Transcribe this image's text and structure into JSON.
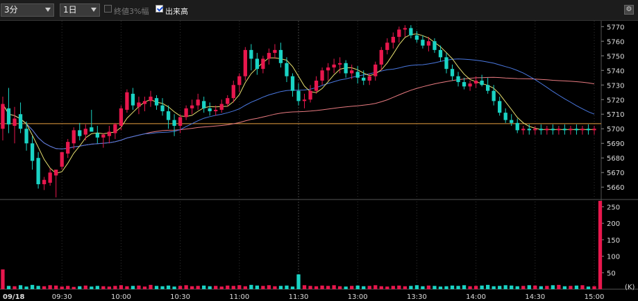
{
  "toolbar": {
    "interval": "3分",
    "range": "1日",
    "close_3pct_label": "終値3%幅",
    "close_3pct_checked": false,
    "volume_label": "出来高",
    "volume_checked": true
  },
  "colors": {
    "up": "#e8174d",
    "down": "#1ad3c4",
    "ma_short": "#e8e070",
    "ma_mid": "#4a78e0",
    "ma_long": "#e87a80",
    "prev_close_line": "#e8a040"
  },
  "chart_data": [
    {
      "type": "candlestick",
      "title": "",
      "y_ticks": [
        5660,
        5670,
        5680,
        5690,
        5700,
        5710,
        5720,
        5730,
        5740,
        5750,
        5760,
        5770
      ],
      "ylim": [
        5652,
        5773
      ],
      "x_tick_labels": [
        "09/18",
        "09:30",
        "10:00",
        "10:30",
        "11:00",
        "11:30",
        "13:00",
        "13:30",
        "14:00",
        "14:30",
        "15:00"
      ],
      "x_tick_bar_index": [
        0,
        10,
        20,
        30,
        40,
        50,
        60,
        70,
        80,
        90,
        100
      ],
      "reference_line": 5703.5,
      "ohlc": [
        [
          5700,
          5722,
          5692,
          5717
        ],
        [
          5714,
          5728,
          5697,
          5703
        ],
        [
          5702,
          5715,
          5690,
          5707
        ],
        [
          5710,
          5718,
          5697,
          5700
        ],
        [
          5700,
          5705,
          5685,
          5690
        ],
        [
          5690,
          5695,
          5672,
          5678
        ],
        [
          5680,
          5684,
          5659,
          5662
        ],
        [
          5662,
          5667,
          5658,
          5665
        ],
        [
          5663,
          5673,
          5661,
          5670
        ],
        [
          5668,
          5672,
          5653,
          5672
        ],
        [
          5674,
          5684,
          5672,
          5684
        ],
        [
          5683,
          5693,
          5680,
          5691
        ],
        [
          5690,
          5701,
          5686,
          5699
        ],
        [
          5699,
          5704,
          5692,
          5695
        ],
        [
          5696,
          5703,
          5692,
          5700
        ],
        [
          5701,
          5713,
          5698,
          5698
        ],
        [
          5697,
          5702,
          5690,
          5694
        ],
        [
          5694,
          5697,
          5687,
          5696
        ],
        [
          5695,
          5702,
          5690,
          5698
        ],
        [
          5697,
          5704,
          5693,
          5703
        ],
        [
          5702,
          5716,
          5699,
          5714
        ],
        [
          5713,
          5727,
          5711,
          5725
        ],
        [
          5724,
          5728,
          5713,
          5716
        ],
        [
          5715,
          5722,
          5710,
          5718
        ],
        [
          5717,
          5722,
          5712,
          5719
        ],
        [
          5719,
          5726,
          5715,
          5722
        ],
        [
          5721,
          5723,
          5713,
          5716
        ],
        [
          5716,
          5721,
          5709,
          5712
        ],
        [
          5712,
          5716,
          5700,
          5706
        ],
        [
          5706,
          5710,
          5695,
          5702
        ],
        [
          5702,
          5710,
          5697,
          5708
        ],
        [
          5708,
          5716,
          5706,
          5714
        ],
        [
          5714,
          5720,
          5710,
          5716
        ],
        [
          5716,
          5724,
          5713,
          5720
        ],
        [
          5719,
          5722,
          5711,
          5714
        ],
        [
          5714,
          5718,
          5709,
          5712
        ],
        [
          5712,
          5716,
          5709,
          5713
        ],
        [
          5713,
          5720,
          5711,
          5717
        ],
        [
          5717,
          5723,
          5715,
          5721
        ],
        [
          5721,
          5733,
          5718,
          5730
        ],
        [
          5730,
          5738,
          5725,
          5736
        ],
        [
          5736,
          5756,
          5733,
          5754
        ],
        [
          5754,
          5758,
          5740,
          5748
        ],
        [
          5748,
          5752,
          5737,
          5741
        ],
        [
          5741,
          5750,
          5738,
          5748
        ],
        [
          5748,
          5755,
          5744,
          5752
        ],
        [
          5752,
          5758,
          5748,
          5754
        ],
        [
          5754,
          5759,
          5742,
          5745
        ],
        [
          5745,
          5749,
          5732,
          5736
        ],
        [
          5736,
          5738,
          5722,
          5726
        ],
        [
          5726,
          5731,
          5716,
          5719
        ],
        [
          5719,
          5724,
          5714,
          5720
        ],
        [
          5720,
          5730,
          5718,
          5726
        ],
        [
          5726,
          5736,
          5724,
          5733
        ],
        [
          5733,
          5742,
          5730,
          5740
        ],
        [
          5740,
          5745,
          5733,
          5742
        ],
        [
          5742,
          5748,
          5738,
          5744
        ],
        [
          5744,
          5749,
          5738,
          5745
        ],
        [
          5745,
          5747,
          5735,
          5738
        ],
        [
          5738,
          5744,
          5734,
          5740
        ],
        [
          5739,
          5743,
          5731,
          5735
        ],
        [
          5735,
          5740,
          5730,
          5733
        ],
        [
          5733,
          5738,
          5730,
          5736
        ],
        [
          5736,
          5746,
          5733,
          5744
        ],
        [
          5744,
          5756,
          5740,
          5754
        ],
        [
          5754,
          5762,
          5751,
          5759
        ],
        [
          5759,
          5766,
          5755,
          5763
        ],
        [
          5763,
          5770,
          5759,
          5768
        ],
        [
          5768,
          5771,
          5763,
          5769
        ],
        [
          5769,
          5771,
          5762,
          5764
        ],
        [
          5764,
          5767,
          5759,
          5761
        ],
        [
          5761,
          5764,
          5755,
          5757
        ],
        [
          5757,
          5763,
          5753,
          5760
        ],
        [
          5760,
          5762,
          5752,
          5754
        ],
        [
          5754,
          5757,
          5746,
          5749
        ],
        [
          5749,
          5752,
          5738,
          5741
        ],
        [
          5741,
          5744,
          5733,
          5736
        ],
        [
          5736,
          5739,
          5729,
          5732
        ],
        [
          5732,
          5735,
          5727,
          5729
        ],
        [
          5729,
          5733,
          5726,
          5731
        ],
        [
          5731,
          5736,
          5728,
          5733
        ],
        [
          5733,
          5737,
          5729,
          5730
        ],
        [
          5730,
          5735,
          5724,
          5726
        ],
        [
          5726,
          5730,
          5716,
          5719
        ],
        [
          5719,
          5722,
          5709,
          5711
        ],
        [
          5711,
          5714,
          5704,
          5706
        ],
        [
          5706,
          5710,
          5702,
          5704
        ],
        [
          5704,
          5707,
          5697,
          5699
        ],
        [
          5699,
          5702,
          5696,
          5700
        ],
        [
          5700,
          5703,
          5696,
          5699
        ],
        [
          5699,
          5702,
          5696,
          5700
        ],
        [
          5700,
          5703,
          5696,
          5699
        ],
        [
          5699,
          5702,
          5696,
          5700
        ],
        [
          5700,
          5703,
          5696,
          5699
        ],
        [
          5699,
          5702,
          5696,
          5700
        ],
        [
          5700,
          5703,
          5696,
          5699
        ],
        [
          5699,
          5702,
          5696,
          5700
        ],
        [
          5700,
          5703,
          5696,
          5699
        ],
        [
          5699,
          5702,
          5696,
          5700
        ],
        [
          5700,
          5703,
          5696,
          5699
        ],
        [
          5699,
          5702,
          5696,
          5700
        ]
      ]
    },
    {
      "type": "bar",
      "title": "",
      "y_ticks": [
        50,
        100,
        150,
        200,
        250
      ],
      "y_unit": "(K)",
      "ylim": [
        0,
        270
      ],
      "values": [
        60,
        10,
        9,
        12,
        8,
        13,
        10,
        9,
        12,
        11,
        8,
        10,
        7,
        9,
        11,
        8,
        10,
        9,
        8,
        10,
        12,
        9,
        10,
        11,
        8,
        13,
        10,
        9,
        11,
        8,
        10,
        12,
        9,
        10,
        11,
        9,
        10,
        8,
        11,
        10,
        12,
        9,
        13,
        11,
        10,
        12,
        9,
        10,
        11,
        8,
        45,
        12,
        10,
        9,
        11,
        10,
        12,
        9,
        8,
        10,
        11,
        9,
        10,
        12,
        9,
        8,
        10,
        11,
        9,
        10,
        12,
        9,
        11,
        10,
        8,
        9,
        11,
        10,
        12,
        9,
        10,
        11,
        13,
        9,
        10,
        12,
        11,
        9,
        10,
        12,
        11,
        9,
        10,
        12,
        13,
        9,
        10,
        11,
        12,
        8,
        9,
        268
      ]
    }
  ]
}
